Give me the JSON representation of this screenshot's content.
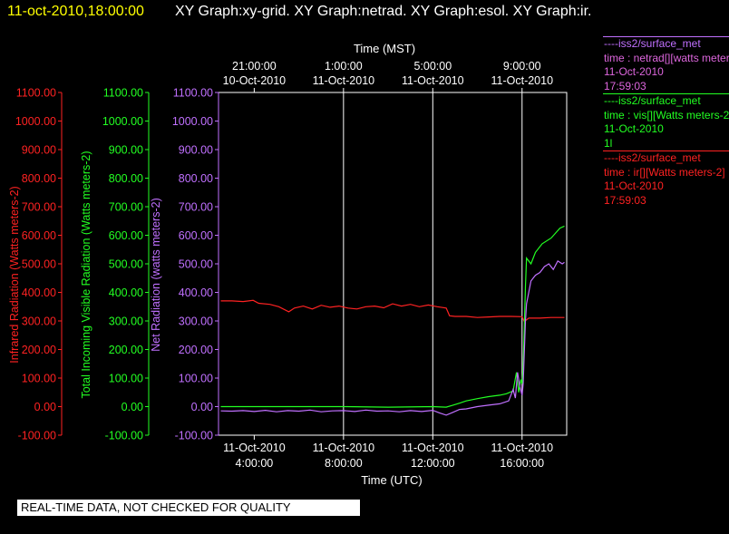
{
  "header": {
    "timestamp": "11-oct-2010,18:00:00",
    "graphs": "XY Graph:xy-grid.  XY Graph:netrad.  XY Graph:esol.  XY Graph:ir."
  },
  "legend": [
    {
      "title": "----iss2/surface_met",
      "line1": "time : netrad[][watts meters-2]",
      "line2": "11-Oct-2010",
      "line3": "17:59:03",
      "colors": [
        "#c070ff",
        "#dd66dd"
      ]
    },
    {
      "title": "----iss2/surface_met",
      "line1": "time : vis[][Watts meters-2]",
      "line2": "11-Oct-2010",
      "line3": "1l",
      "colors": [
        "#22ff22",
        "#22ff22"
      ]
    },
    {
      "title": "----iss2/surface_met",
      "line1": "time : ir[][Watts meters-2]",
      "line2": "11-Oct-2010",
      "line3": "17:59:03",
      "colors": [
        "#ff2222",
        "#ff2222"
      ]
    }
  ],
  "footer": "REAL-TIME DATA, NOT CHECKED FOR QUALITY",
  "chart_data": {
    "type": "line",
    "top_axis": {
      "label": "Time (MST)",
      "ticks": [
        {
          "x_utc_hours": 4.0,
          "line1": "21:00:00",
          "line2": "10-Oct-2010"
        },
        {
          "x_utc_hours": 8.0,
          "line1": "1:00:00",
          "line2": "11-Oct-2010"
        },
        {
          "x_utc_hours": 12.0,
          "line1": "5:00:00",
          "line2": "11-Oct-2010"
        },
        {
          "x_utc_hours": 16.0,
          "line1": "9:00:00",
          "line2": "11-Oct-2010"
        }
      ]
    },
    "x_axis": {
      "label": "Time (UTC)",
      "range": [
        2.4,
        18.0
      ],
      "ticks": [
        {
          "x": 4.0,
          "line1": "11-Oct-2010",
          "line2": "4:00:00"
        },
        {
          "x": 8.0,
          "line1": "11-Oct-2010",
          "line2": "8:00:00"
        },
        {
          "x": 12.0,
          "line1": "11-Oct-2010",
          "line2": "12:00:00"
        },
        {
          "x": 16.0,
          "line1": "11-Oct-2010",
          "line2": "16:00:00"
        }
      ]
    },
    "y_axes": [
      {
        "id": "ir",
        "label": "Infrared Radiation (Watts meters-2)",
        "color": "#ff2222",
        "range": [
          -100,
          1100
        ],
        "ticks": [
          "-100.00",
          "0.00",
          "100.00",
          "200.00",
          "300.00",
          "400.00",
          "500.00",
          "600.00",
          "700.00",
          "800.00",
          "900.00",
          "1000.00",
          "1100.00"
        ]
      },
      {
        "id": "vis",
        "label": "Total Incoming Visible Radiation (Watts meters-2)",
        "color": "#22ff22",
        "range": [
          -100,
          1100
        ],
        "ticks": [
          "-100.00",
          "0.00",
          "100.00",
          "200.00",
          "300.00",
          "400.00",
          "500.00",
          "600.00",
          "700.00",
          "800.00",
          "900.00",
          "1000.00",
          "1100.00"
        ]
      },
      {
        "id": "net",
        "label": "Net Radiation (watts meters-2)",
        "color": "#c070ff",
        "range": [
          -100,
          1100
        ],
        "ticks": [
          "-100.00",
          "0.00",
          "100.00",
          "200.00",
          "300.00",
          "400.00",
          "500.00",
          "600.00",
          "700.00",
          "800.00",
          "900.00",
          "1000.00",
          "1100.00"
        ]
      }
    ],
    "grid_x": [
      8.0,
      12.0,
      16.0
    ],
    "series": [
      {
        "axis": "ir",
        "color": "#ff2222",
        "x": [
          2.5,
          3.0,
          3.5,
          3.95,
          4.2,
          4.7,
          5.1,
          5.55,
          5.8,
          6.2,
          6.6,
          7.0,
          7.4,
          7.8,
          8.2,
          8.6,
          9.0,
          9.4,
          9.8,
          10.2,
          10.6,
          11.0,
          11.4,
          11.8,
          12.2,
          12.6,
          12.75,
          13.0,
          13.5,
          14.0,
          14.5,
          15.0,
          15.5,
          16.0,
          16.1,
          16.3,
          16.8,
          17.3,
          17.9
        ],
        "y": [
          370,
          370,
          368,
          372,
          362,
          358,
          350,
          332,
          345,
          352,
          342,
          355,
          348,
          352,
          345,
          342,
          350,
          352,
          346,
          360,
          352,
          358,
          350,
          356,
          350,
          345,
          318,
          316,
          316,
          312,
          314,
          316,
          316,
          315,
          298,
          310,
          310,
          312,
          312
        ]
      },
      {
        "axis": "vis",
        "color": "#22ff22",
        "x": [
          2.5,
          4.0,
          6.0,
          8.0,
          10.0,
          12.0,
          12.6,
          12.9,
          13.2,
          13.5,
          14.0,
          14.5,
          15.0,
          15.3,
          15.6,
          15.75,
          15.85,
          15.95,
          16.0,
          16.05,
          16.15,
          16.2,
          16.4,
          16.6,
          16.9,
          17.3,
          17.7,
          17.9
        ],
        "y": [
          0,
          0,
          0,
          0,
          -2,
          0,
          -2,
          5,
          12,
          20,
          28,
          35,
          40,
          45,
          55,
          120,
          50,
          95,
          80,
          140,
          420,
          520,
          500,
          540,
          570,
          590,
          625,
          632
        ]
      },
      {
        "axis": "net",
        "color": "#c070ff",
        "x": [
          2.5,
          3.0,
          3.5,
          4.0,
          4.5,
          5.0,
          5.5,
          6.0,
          6.5,
          7.0,
          7.5,
          8.0,
          8.5,
          9.0,
          9.5,
          10.0,
          10.5,
          11.0,
          11.5,
          12.0,
          12.3,
          12.6,
          12.9,
          13.2,
          13.5,
          14.0,
          14.5,
          15.0,
          15.4,
          15.6,
          15.7,
          15.8,
          15.9,
          16.0,
          16.05,
          16.15,
          16.2,
          16.4,
          16.6,
          16.8,
          17.0,
          17.2,
          17.4,
          17.6,
          17.8,
          17.9
        ],
        "y": [
          -15,
          -16,
          -14,
          -17,
          -13,
          -18,
          -14,
          -16,
          -12,
          -18,
          -15,
          -14,
          -17,
          -12,
          -16,
          -15,
          -18,
          -14,
          -17,
          -13,
          -22,
          -30,
          -20,
          -10,
          -8,
          0,
          5,
          10,
          20,
          60,
          30,
          120,
          70,
          40,
          80,
          300,
          360,
          440,
          460,
          470,
          490,
          500,
          480,
          510,
          500,
          505
        ]
      }
    ]
  }
}
